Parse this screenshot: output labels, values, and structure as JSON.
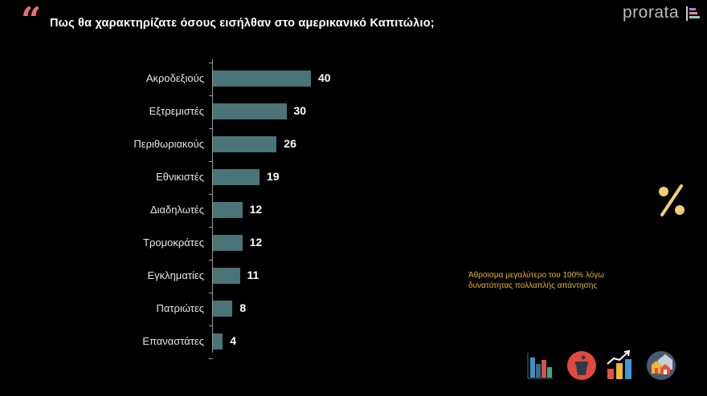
{
  "header": {
    "quote_mark": "“",
    "title": "Πως θα χαρακτηρίζατε όσους εισήλθαν στο αμερικανικό Καπιτώλιο;",
    "logo": "prorata"
  },
  "note": {
    "line1": "Άθροισμα μεγαλύτερο του 100% λόγω",
    "line2": "δυνατότητας πολλαπλής απάντησης"
  },
  "percent_symbol": "%",
  "footer_icons": [
    "bar-chart-icon",
    "podium-icon",
    "growth-chart-icon",
    "houses-icon"
  ],
  "colors": {
    "bar": "#4a7478",
    "accent_quote": "#e8716b",
    "note": "#e6b530",
    "percent": "#f0cf72"
  },
  "chart_data": {
    "type": "bar",
    "orientation": "horizontal",
    "title": "Πως θα χαρακτηρίζατε όσους εισήλθαν στο αμερικανικό Καπιτώλιο;",
    "categories": [
      "Ακροδεξιούς",
      "Εξτρεμιστές",
      "Περιθωριακούς",
      "Εθνικιστές",
      "Διαδηλωτές",
      "Τρομοκράτες",
      "Εγκληματίες",
      "Πατριώτες",
      "Επαναστάτες"
    ],
    "values": [
      40,
      30,
      26,
      19,
      12,
      12,
      11,
      8,
      4
    ],
    "labels": [
      "40",
      "30",
      "26",
      "19",
      "12",
      "12",
      "11",
      "8",
      "4"
    ],
    "xlabel": "",
    "ylabel": "",
    "unit": "%",
    "grid": false,
    "legend": null
  }
}
